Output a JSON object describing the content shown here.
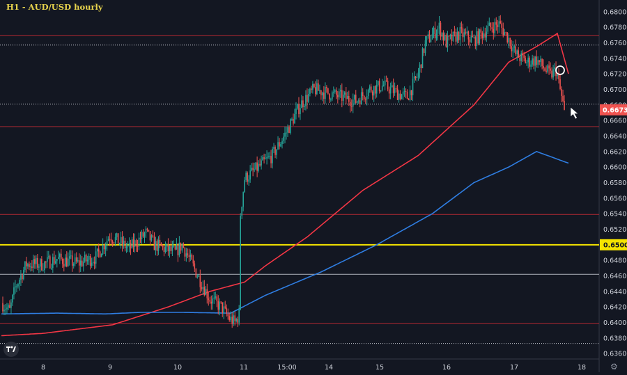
{
  "title": "H1 - AUD/USD hourly",
  "chart_data": {
    "type": "candlestick",
    "title": "H1 - AUD/USD hourly",
    "xlabel": "",
    "ylabel": "",
    "ylim": [
      0.6353,
      0.6815
    ],
    "y_ticks": [
      "0.68000",
      "0.67800",
      "0.67600",
      "0.67400",
      "0.67200",
      "0.67000",
      "0.66800",
      "0.66600",
      "0.66400",
      "0.66200",
      "0.66000",
      "0.65800",
      "0.65600",
      "0.65400",
      "0.65200",
      "0.65000",
      "0.64800",
      "0.64600",
      "0.64400",
      "0.64200",
      "0.64000",
      "0.63800",
      "0.63600"
    ],
    "x_ticks": [
      "8",
      "9",
      "10",
      "11",
      "15:00",
      "14",
      "15",
      "16",
      "17",
      "18"
    ],
    "current_price": "0.66737",
    "highlight_price": "0.65000",
    "grid": false,
    "colors": {
      "up": "#26a69a",
      "down": "#ef5350",
      "background": "#131722",
      "ma_fast": "#f23645",
      "ma_slow": "#2f7de1",
      "level_yellow": "#f5e400",
      "price_box": "#ef5350"
    },
    "levels": {
      "red": [
        0.6769,
        0.6652,
        0.6539,
        0.6399
      ],
      "white_solid": [
        0.6462
      ],
      "white_dotted": [
        0.6757,
        0.6681,
        0.6373
      ],
      "yellow": [
        0.65
      ]
    },
    "series": [
      {
        "name": "AUD/USD",
        "ohlc_anchors": [
          [
            0,
            0.6425
          ],
          [
            6,
            0.6415
          ],
          [
            10,
            0.6445
          ],
          [
            18,
            0.6475
          ],
          [
            30,
            0.6475
          ],
          [
            40,
            0.6482
          ],
          [
            55,
            0.6476
          ],
          [
            68,
            0.6484
          ],
          [
            78,
            0.6512
          ],
          [
            92,
            0.6495
          ],
          [
            104,
            0.6515
          ],
          [
            110,
            0.65
          ],
          [
            125,
            0.649
          ],
          [
            130,
            0.65
          ],
          [
            140,
            0.6465
          ],
          [
            150,
            0.643
          ],
          [
            158,
            0.642
          ],
          [
            164,
            0.6405
          ],
          [
            168,
            0.64
          ],
          [
            171,
            0.641
          ],
          [
            172,
            0.654
          ],
          [
            175,
            0.6585
          ],
          [
            185,
            0.66
          ],
          [
            195,
            0.6615
          ],
          [
            205,
            0.6645
          ],
          [
            215,
            0.668
          ],
          [
            225,
            0.67
          ],
          [
            235,
            0.6695
          ],
          [
            245,
            0.669
          ],
          [
            255,
            0.6685
          ],
          [
            265,
            0.67
          ],
          [
            275,
            0.6705
          ],
          [
            285,
            0.6695
          ],
          [
            292,
            0.669
          ],
          [
            300,
            0.672
          ],
          [
            305,
            0.676
          ],
          [
            315,
            0.678
          ],
          [
            320,
            0.676
          ],
          [
            330,
            0.6772
          ],
          [
            340,
            0.6763
          ],
          [
            350,
            0.6778
          ],
          [
            358,
            0.6784
          ],
          [
            365,
            0.6765
          ],
          [
            370,
            0.6745
          ],
          [
            378,
            0.6735
          ],
          [
            385,
            0.6738
          ],
          [
            390,
            0.6728
          ],
          [
            395,
            0.6718
          ],
          [
            399,
            0.6725
          ],
          [
            403,
            0.669
          ],
          [
            405,
            0.66737
          ]
        ]
      },
      {
        "name": "MA fast",
        "anchors": [
          [
            0,
            0.6383
          ],
          [
            30,
            0.6386
          ],
          [
            80,
            0.6397
          ],
          [
            120,
            0.642
          ],
          [
            150,
            0.644
          ],
          [
            175,
            0.6452
          ],
          [
            190,
            0.6473
          ],
          [
            220,
            0.651
          ],
          [
            260,
            0.657
          ],
          [
            300,
            0.6615
          ],
          [
            340,
            0.668
          ],
          [
            365,
            0.6735
          ],
          [
            385,
            0.6755
          ],
          [
            400,
            0.6772
          ],
          [
            408,
            0.672
          ]
        ]
      },
      {
        "name": "MA slow",
        "anchors": [
          [
            0,
            0.6411
          ],
          [
            40,
            0.6412
          ],
          [
            75,
            0.6411
          ],
          [
            100,
            0.6413
          ],
          [
            130,
            0.6413
          ],
          [
            165,
            0.6412
          ],
          [
            190,
            0.6435
          ],
          [
            230,
            0.6465
          ],
          [
            270,
            0.65
          ],
          [
            310,
            0.654
          ],
          [
            340,
            0.658
          ],
          [
            365,
            0.66
          ],
          [
            385,
            0.662
          ],
          [
            408,
            0.6605
          ]
        ]
      }
    ]
  }
}
